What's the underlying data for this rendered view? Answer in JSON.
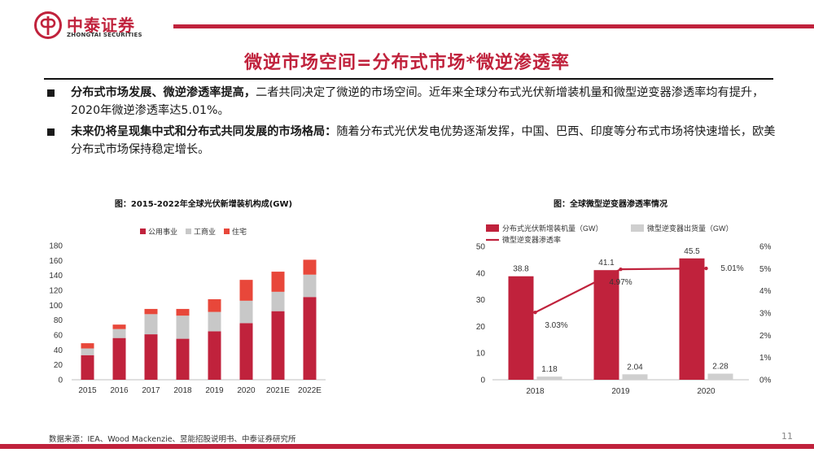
{
  "header": {
    "logo_cn": "中泰证券",
    "logo_en": "ZHONGTAI SECURITIES",
    "brand_color": "#c0223c"
  },
  "slide": {
    "title": "微逆市场空间=分布式市场*微逆渗透率",
    "bullets": [
      {
        "strong": "分布式市场发展、微逆渗透率提高，",
        "text": "二者共同决定了微逆的市场空间。近年来全球分布式光伏新增装机量和微型逆变器渗透率均有提升，2020年微逆渗透率达5.01%。"
      },
      {
        "strong": "未来仍将呈现集中式和分布式共同发展的市场格局：",
        "text": "随着分布式光伏发电优势逐渐发挥，中国、巴西、印度等分布式市场将快速增长，欧美分布式市场保持稳定增长。"
      }
    ]
  },
  "chart_data": [
    {
      "type": "bar",
      "stacked": true,
      "title": "图：2015-2022年全球光伏新增装机构成(GW)",
      "categories": [
        "2015",
        "2016",
        "2017",
        "2018",
        "2019",
        "2020",
        "2021E",
        "2022E"
      ],
      "series": [
        {
          "name": "公用事业",
          "color": "#c0223c",
          "values": [
            33,
            56,
            61,
            55,
            65,
            76,
            92,
            111
          ]
        },
        {
          "name": "工商业",
          "color": "#c8c8c8",
          "values": [
            9,
            12,
            27,
            31,
            26,
            30,
            26,
            30
          ]
        },
        {
          "name": "住宅",
          "color": "#e8473a",
          "values": [
            7,
            6,
            7,
            9,
            17,
            28,
            27,
            20
          ]
        }
      ],
      "ylim": [
        0,
        180
      ],
      "yticks": [
        0,
        20,
        40,
        60,
        80,
        100,
        120,
        140,
        160,
        180
      ],
      "legend": "top"
    },
    {
      "type": "bar+line",
      "title": "图：全球微型逆变器渗透率情况",
      "categories": [
        "2018",
        "2019",
        "2020"
      ],
      "series": [
        {
          "name": "分布式光伏新增装机量（GW）",
          "kind": "bar",
          "color": "#c0223c",
          "values": [
            38.8,
            41.1,
            45.5
          ],
          "labels": [
            "38.8",
            "41.1",
            "45.5"
          ]
        },
        {
          "name": "微型逆变器出货量（GW）",
          "kind": "bar",
          "color": "#cfcfcf",
          "values": [
            1.18,
            2.04,
            2.28
          ],
          "labels": [
            "1.18",
            "2.04",
            "2.28"
          ]
        },
        {
          "name": "微型逆变器渗透率",
          "kind": "line",
          "axis": "right",
          "color": "#c0223c",
          "values": [
            3.03,
            4.97,
            5.01
          ],
          "labels": [
            "3.03%",
            "4.97%",
            "5.01%"
          ]
        }
      ],
      "ylim": [
        0,
        50
      ],
      "yticks": [
        "0",
        "10",
        "20",
        "30",
        "40",
        "50"
      ],
      "y2lim": [
        0,
        6
      ],
      "y2ticks": [
        "0%",
        "1%",
        "2%",
        "3%",
        "4%",
        "5%",
        "6%"
      ],
      "legend": "top"
    }
  ],
  "footer": {
    "source": "数据来源：IEA、Wood Mackenzie、昱能招股说明书、中泰证券研究所",
    "page": "11"
  }
}
